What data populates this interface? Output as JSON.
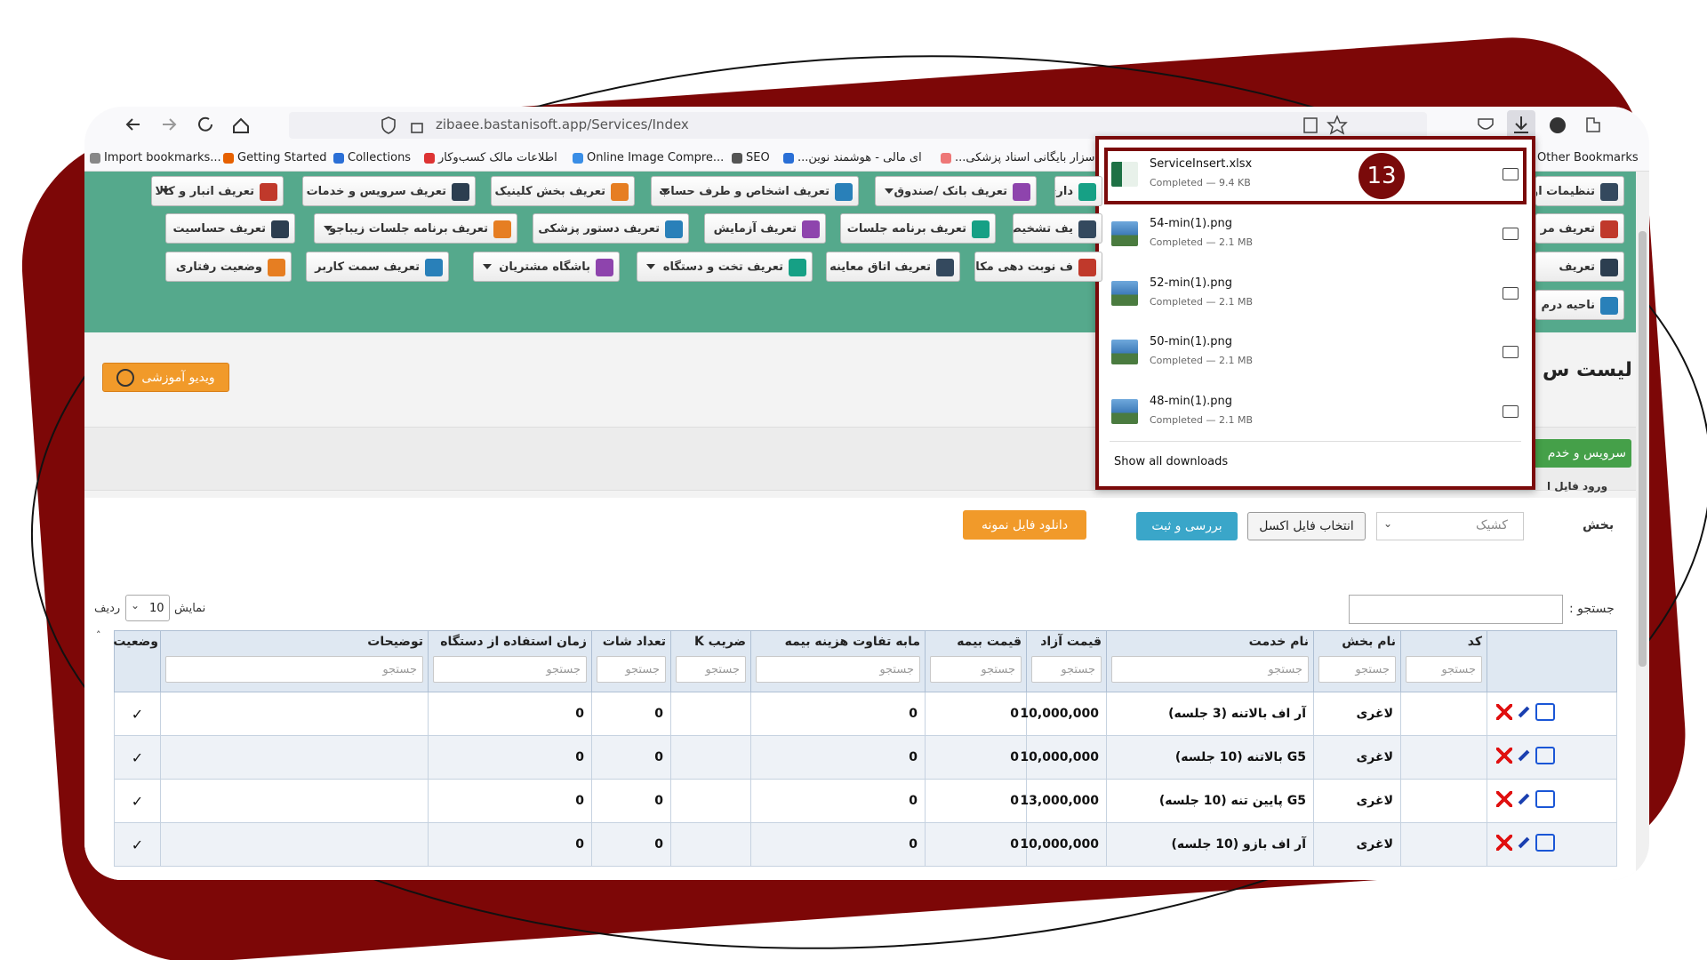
{
  "browser": {
    "url": "zibaee.bastanisoft.app/Services/Index",
    "bookmarks": [
      "Import bookmarks...",
      "Getting Started",
      "Collections",
      "اطلاعات مالک کسب‌وکار",
      "Online Image Compre...",
      "SEO",
      "...ای مالی - هوشمند نوین",
      "...سزار بایگانی اسناد پزشکی"
    ],
    "other_bookmarks": "Other Bookmarks"
  },
  "menu": [
    [
      "تعریف انبار و کالا",
      "تعریف سرویس و خدمات",
      "تعریف بخش کلینیک",
      "تعریف اشخاص و طرف حساب",
      "تعریف بانک /صندوق",
      "داری",
      "تنظیمات او"
    ],
    [
      "تعریف حساسیت",
      "تعریف برنامه جلسات زیباجو",
      "تعریف دستور پزشکی",
      "تعریف آزمایش",
      "تعریف برنامه جلسات",
      "یف تشخیص",
      "تعریف مر"
    ],
    [
      "وضعیت رفتاری",
      "تعریف سمت کاربر",
      "باشگاه مشتریان",
      "تعریف تخت و دستگاه",
      "تعریف اتاق معاینه",
      "ف نوبت دهی مکانیزه",
      "تعریف"
    ],
    [
      "ناحیه درم"
    ]
  ],
  "downloads": {
    "items": [
      {
        "name": "ServiceInsert.xlsx",
        "status": "Completed — 9.4 KB"
      },
      {
        "name": "54-min(1).png",
        "status": "Completed — 2.1 MB"
      },
      {
        "name": "52-min(1).png",
        "status": "Completed — 2.1 MB"
      },
      {
        "name": "50-min(1).png",
        "status": "Completed — 2.1 MB"
      },
      {
        "name": "48-min(1).png",
        "status": "Completed — 2.1 MB"
      }
    ],
    "show_all": "Show all downloads"
  },
  "annotation": "13",
  "page": {
    "video_button": "ویدیو آموزشی",
    "title": "لیست س",
    "add_button": "سرویس و خدم",
    "import_label": "ورود فایل ا",
    "section_label": "بخش",
    "section_value": "کشیک",
    "choose_file": "انتخاب فایل اکسل",
    "review": "بررسی و ثبت",
    "download_sample": "دانلود فایل نمونه",
    "search_label": "جستجو :",
    "show": "نمایش",
    "page_size": "10",
    "rows_label": "ردیف"
  },
  "table": {
    "headers": [
      "کد",
      "نام بخش",
      "نام خدمت",
      "قیمت آزاد",
      "قیمت بیمه",
      "مابه تفاوت هزینه بیمه",
      "ضریب K",
      "تعداد شات",
      "زمان استفاده از دستگاه",
      "توضیحات",
      "وضعیت"
    ],
    "filter_placeholder": "جستجو",
    "rows": [
      [
        null,
        "لاغری",
        "آر اف بالاتنه (3 جلسه)",
        "10,000,000",
        "0",
        "0",
        null,
        "0",
        "0",
        null,
        "✓"
      ],
      [
        null,
        "لاغری",
        "G5 بالاتنه (10 جلسه)",
        "10,000,000",
        "0",
        "0",
        null,
        "0",
        "0",
        null,
        "✓"
      ],
      [
        null,
        "لاغری",
        "G5 پایین تنه (10 جلسه)",
        "13,000,000",
        "0",
        "0",
        null,
        "0",
        "0",
        null,
        "✓"
      ],
      [
        null,
        "لاغری",
        "آر اف بازو (10 جلسه)",
        "10,000,000",
        "0",
        "0",
        null,
        "0",
        "0",
        null,
        "✓"
      ]
    ]
  }
}
